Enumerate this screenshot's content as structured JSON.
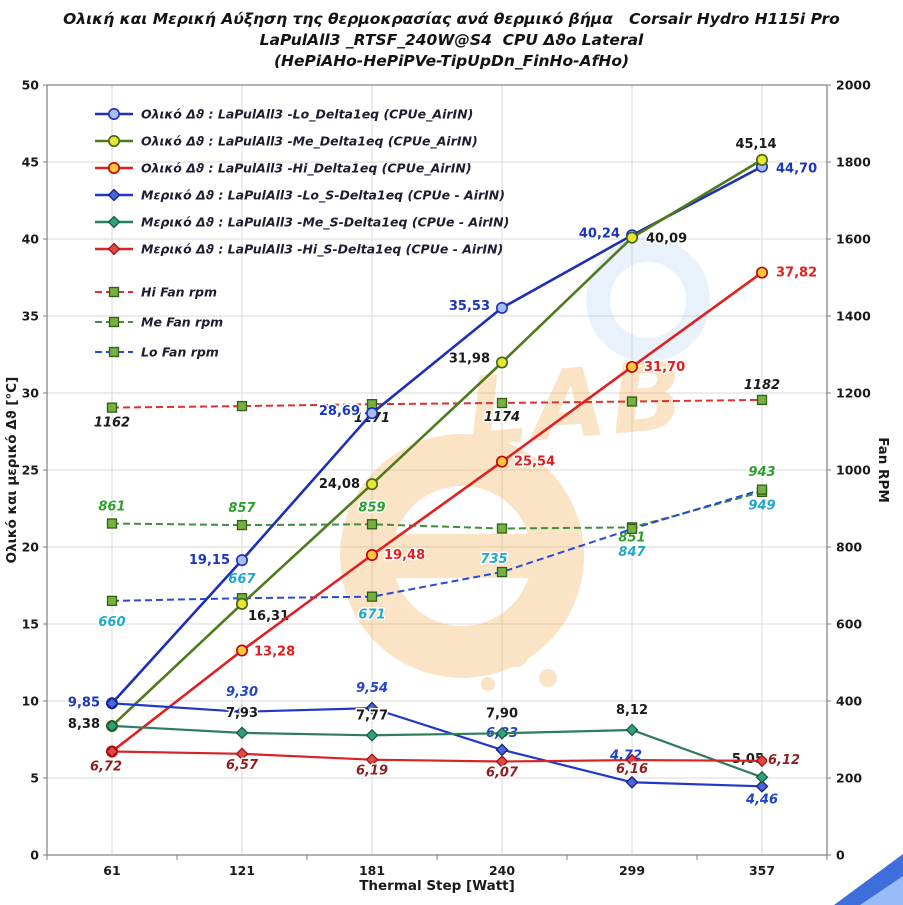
{
  "title": {
    "line1": "Ολική και Μερική Αύξηση της θερμοκρασίας ανά θερμικό βήμα   Corsair Hydro H115i Pro",
    "line2": "LaPulAll3 _RTSF_240W@S4  CPU Δϑο Lateral",
    "line3": "(HePiAHo-HePiPVe-TipUpDn_FinHo-AfHo)"
  },
  "watermark": {
    "text": "LAB",
    "color": "#F2A33C"
  },
  "chart_data": {
    "type": "line",
    "x_categories": [
      "61",
      "121",
      "181",
      "240",
      "299",
      "357"
    ],
    "xlabel": "Thermal Step [Watt]",
    "ylabel_left": "Ολικό  και  μερικό  Δϑ  [°C]",
    "ylabel_right": "Fan RPM",
    "ylim_left": [
      0,
      50
    ],
    "yticks_left": [
      "0",
      "5",
      "10",
      "15",
      "20",
      "25",
      "30",
      "35",
      "40",
      "45",
      "50"
    ],
    "ylim_right": [
      0,
      2000
    ],
    "yticks_right": [
      "0",
      "200",
      "400",
      "600",
      "800",
      "1000",
      "1200",
      "1400",
      "1600",
      "1800",
      "2000"
    ],
    "grid": true,
    "legend_position": "top-left",
    "series": [
      {
        "name": "Ολικό Δϑ : LaPulAll3 -Lo_Delta1eq (CPUe_AirIN)",
        "group": "total",
        "axis": "left",
        "color": "#1B2FB8",
        "dash": null,
        "marker": "circle",
        "marker_fill": "#A8BCF2",
        "marker_stroke": "#1B2FB8",
        "label_color": "#1B35C0",
        "label_italic": false,
        "values": [
          9.85,
          19.15,
          28.69,
          35.53,
          40.24,
          44.7
        ],
        "labels": [
          "9,85",
          "19,15",
          "28,69",
          "35,53",
          "40,24",
          "44,70"
        ],
        "label_anchor": [
          "e",
          "e",
          "e",
          "e",
          "e",
          "s"
        ],
        "label_dx": [
          -12,
          -12,
          -12,
          -12,
          -12,
          14
        ],
        "label_dy": [
          3,
          4,
          2,
          2,
          2,
          6
        ]
      },
      {
        "name": "Ολικό Δϑ : LaPulAll3 -Me_Delta1eq (CPUe_AirIN)",
        "group": "total",
        "axis": "left",
        "color": "#4F7A1C",
        "dash": null,
        "marker": "circle",
        "marker_fill": "#E8E632",
        "marker_stroke": "#3E6414",
        "label_color": "#1A1A1A",
        "label_italic": false,
        "values": [
          8.38,
          16.31,
          24.08,
          31.98,
          40.09,
          45.14
        ],
        "labels": [
          "8,38",
          "16,31",
          "24,08",
          "31,98",
          "40,09",
          "45,14"
        ],
        "label_anchor": [
          "e",
          "s",
          "e",
          "e",
          "s",
          "m"
        ],
        "label_dx": [
          -12,
          6,
          -12,
          -12,
          14,
          -6
        ],
        "label_dy": [
          2,
          16,
          4,
          0,
          5,
          -12
        ]
      },
      {
        "name": "Ολικό Δϑ : LaPulAll3 -Hi_Delta1eq (CPUe_AirIN)",
        "group": "total",
        "axis": "left",
        "color": "#E02020",
        "dash": null,
        "marker": "circle",
        "marker_fill": "#FFC83C",
        "marker_stroke": "#C00000",
        "label_color": "#E02020",
        "label_italic": false,
        "values": [
          6.72,
          13.28,
          19.48,
          25.54,
          31.7,
          37.82
        ],
        "labels": [
          null,
          "13,28",
          "19,48",
          "25,54",
          "31,70",
          "37,82"
        ],
        "label_anchor": [
          "m",
          "s",
          "s",
          "s",
          "s",
          "s"
        ],
        "label_dx": [
          0,
          12,
          12,
          12,
          12,
          14
        ],
        "label_dy": [
          0,
          5,
          4,
          4,
          4,
          4
        ]
      },
      {
        "name": "Μερικό Δϑ : LaPulAll3 -Lo_S-Delta1eq (CPUe - AirIN)",
        "group": "partial",
        "axis": "left",
        "color": "#2038C8",
        "dash": null,
        "marker": "diamond",
        "marker_fill": "#4668DC",
        "marker_stroke": "#141E78",
        "label_color": "#2244CC",
        "label_italic": true,
        "values": [
          9.85,
          9.3,
          9.54,
          6.83,
          4.72,
          4.46
        ],
        "labels": [
          null,
          "9,30",
          "9,54",
          "6,83",
          "4,72",
          "4,46"
        ],
        "label_anchor": [
          "m",
          "m",
          "m",
          "m",
          "m",
          "m"
        ],
        "label_dx": [
          0,
          0,
          0,
          0,
          -6,
          0
        ],
        "label_dy": [
          0,
          -16,
          -16,
          -13,
          -23,
          17
        ]
      },
      {
        "name": "Μερικό Δϑ : LaPulAll3 -Me_S-Delta1eq (CPUe - AirIN)",
        "group": "partial",
        "axis": "left",
        "color": "#2E7D5B",
        "dash": null,
        "marker": "diamond",
        "marker_fill": "#2FA077",
        "marker_stroke": "#1C5B43",
        "label_color": "#1A1A1A",
        "label_italic": false,
        "values": [
          8.38,
          7.93,
          7.77,
          7.9,
          8.12,
          5.05
        ],
        "labels": [
          null,
          "7,93",
          "7,77",
          "7,90",
          "8,12",
          "5,05"
        ],
        "label_anchor": [
          "m",
          "m",
          "m",
          "m",
          "m",
          "e"
        ],
        "label_dx": [
          0,
          0,
          0,
          0,
          0,
          2
        ],
        "label_dy": [
          0,
          -16,
          -16,
          -16,
          -16,
          -14
        ]
      },
      {
        "name": "Μερικό Δϑ : LaPulAll3 -Hi_S-Delta1eq (CPUe - AirIN)",
        "group": "partial",
        "axis": "left",
        "color": "#D82424",
        "dash": null,
        "marker": "diamond",
        "marker_fill": "#E04848",
        "marker_stroke": "#A01010",
        "label_color": "#8F1F1F",
        "label_italic": true,
        "values": [
          6.72,
          6.57,
          6.19,
          6.07,
          6.16,
          6.12
        ],
        "labels": [
          "6,72",
          "6,57",
          "6,19",
          "6,07",
          "6,16",
          "6,12"
        ],
        "label_anchor": [
          "m",
          "m",
          "m",
          "m",
          "m",
          "s"
        ],
        "label_dx": [
          -6,
          0,
          0,
          0,
          0,
          6
        ],
        "label_dy": [
          19,
          15,
          15,
          15,
          13,
          3
        ]
      },
      {
        "name": "Hi Fan  rpm",
        "group": "fan",
        "axis": "right",
        "color": "#E03030",
        "dash": "7,4",
        "marker": "square",
        "marker_fill": "#76B041",
        "marker_stroke": "#2F5E16",
        "label_color": "#1A1A1A",
        "label_italic": true,
        "values": [
          1162,
          1166,
          1171,
          1174,
          1178,
          1182
        ],
        "labels": [
          "1162",
          null,
          "1171",
          "1174",
          null,
          "1182"
        ],
        "label_anchor": [
          "m",
          "m",
          "m",
          "m",
          "m",
          "m"
        ],
        "label_dx": [
          0,
          0,
          0,
          0,
          0,
          0
        ],
        "label_dy": [
          19,
          0,
          18,
          18,
          0,
          -11
        ]
      },
      {
        "name": "Me Fan  rpm",
        "group": "fan",
        "axis": "right",
        "color": "#3F8F3F",
        "dash": "7,4",
        "marker": "square",
        "marker_fill": "#76B041",
        "marker_stroke": "#2F5E16",
        "label_color": "#2E9E2E",
        "label_italic": true,
        "values": [
          861,
          857,
          859,
          848,
          851,
          943
        ],
        "labels": [
          "861",
          "857",
          "859",
          null,
          "851",
          "943"
        ],
        "label_anchor": [
          "m",
          "m",
          "m",
          "m",
          "m",
          "m"
        ],
        "label_dx": [
          0,
          0,
          0,
          0,
          0,
          0
        ],
        "label_dy": [
          -13,
          -13,
          -13,
          0,
          14,
          -16
        ]
      },
      {
        "name": "Lo Fan  rpm",
        "group": "fan",
        "axis": "right",
        "color": "#2B4BD4",
        "dash": "7,4",
        "marker": "square",
        "marker_fill": "#76B041",
        "marker_stroke": "#2F5E16",
        "label_color": "#1FA8CC",
        "label_italic": true,
        "values": [
          660,
          667,
          671,
          735,
          847,
          949
        ],
        "labels": [
          "660",
          "667",
          "671",
          "735",
          "847",
          "949"
        ],
        "label_anchor": [
          "m",
          "m",
          "m",
          "m",
          "m",
          "m"
        ],
        "label_dx": [
          0,
          0,
          0,
          -8,
          0,
          0
        ],
        "label_dy": [
          25,
          -15,
          22,
          -9,
          27,
          20
        ]
      }
    ]
  }
}
